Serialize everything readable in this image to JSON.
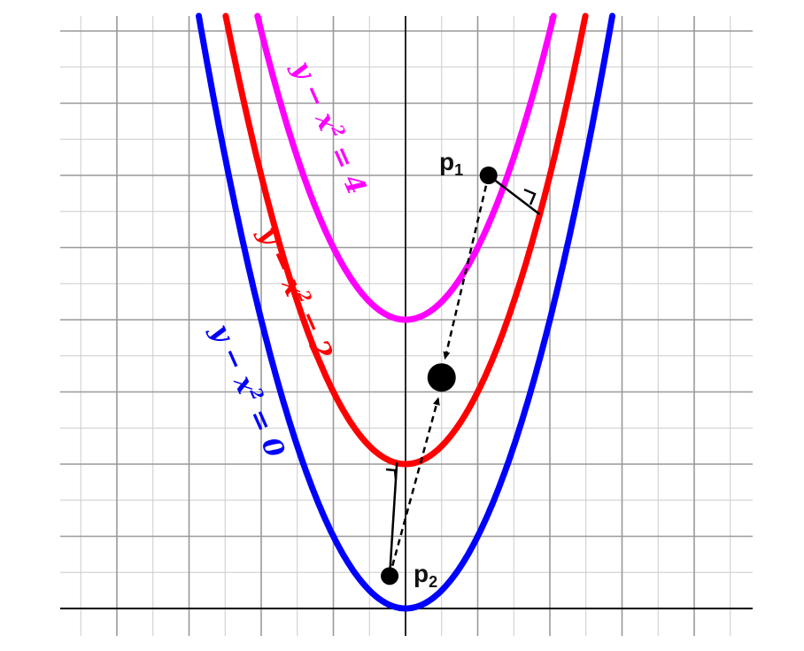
{
  "diagram": {
    "curves": [
      {
        "name": "y - x^2 = 0",
        "c": 0,
        "color": "#0000ff",
        "label_a": "y − x",
        "label_exp": "2",
        "label_b": " = 0"
      },
      {
        "name": "y - x^2 = 2",
        "c": 2,
        "color": "#ff0000",
        "label_a": "y − x",
        "label_exp": "2",
        "label_b": " = 2"
      },
      {
        "name": "y - x^2 = 4",
        "c": 4,
        "color": "#ff00ff",
        "label_a": "y − x",
        "label_exp": "2",
        "label_b": " = 4"
      }
    ],
    "points": {
      "p1": {
        "label": "p",
        "sub": "1",
        "x": 1.15,
        "y": 6.0
      },
      "p2": {
        "label": "p",
        "sub": "2",
        "x": -0.22,
        "y": 0.45
      },
      "target": {
        "x": 0.5,
        "y": 3.2
      }
    },
    "grid": {
      "major_step": 1,
      "minor_step": 0.5
    }
  }
}
